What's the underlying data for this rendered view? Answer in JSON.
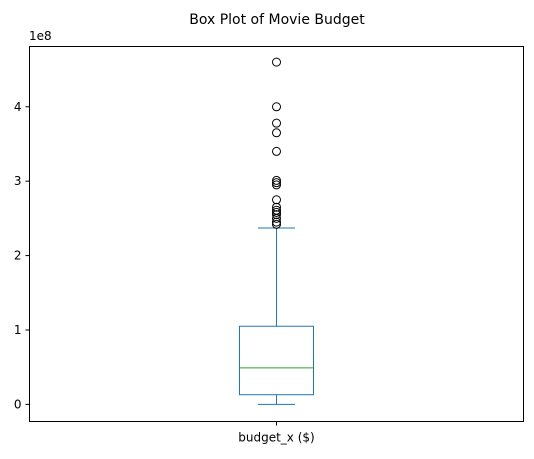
{
  "chart_data": {
    "type": "box",
    "title": "Box Plot of Movie Budget",
    "categories": [
      "budget_x ($)"
    ],
    "y_offset_label": "1e8",
    "y_ticks": [
      0,
      1,
      2,
      3,
      4
    ],
    "ylim": [
      -0.23,
      4.81
    ],
    "grid": false,
    "stats": {
      "whisker_low": 0.0,
      "q1": 0.13,
      "median": 0.49,
      "q3": 1.05,
      "whisker_high": 2.37
    },
    "outliers": [
      4.6,
      4.0,
      3.78,
      3.65,
      3.4,
      3.01,
      2.98,
      2.95,
      2.75,
      2.65,
      2.61,
      2.58,
      2.55,
      2.5,
      2.45,
      2.42
    ],
    "colors": {
      "box": "#1f77b4",
      "whiskers": "#1f77b4",
      "caps": "#1f77b4",
      "median": "#2ca02c",
      "outliers_edge": "#000000"
    }
  }
}
